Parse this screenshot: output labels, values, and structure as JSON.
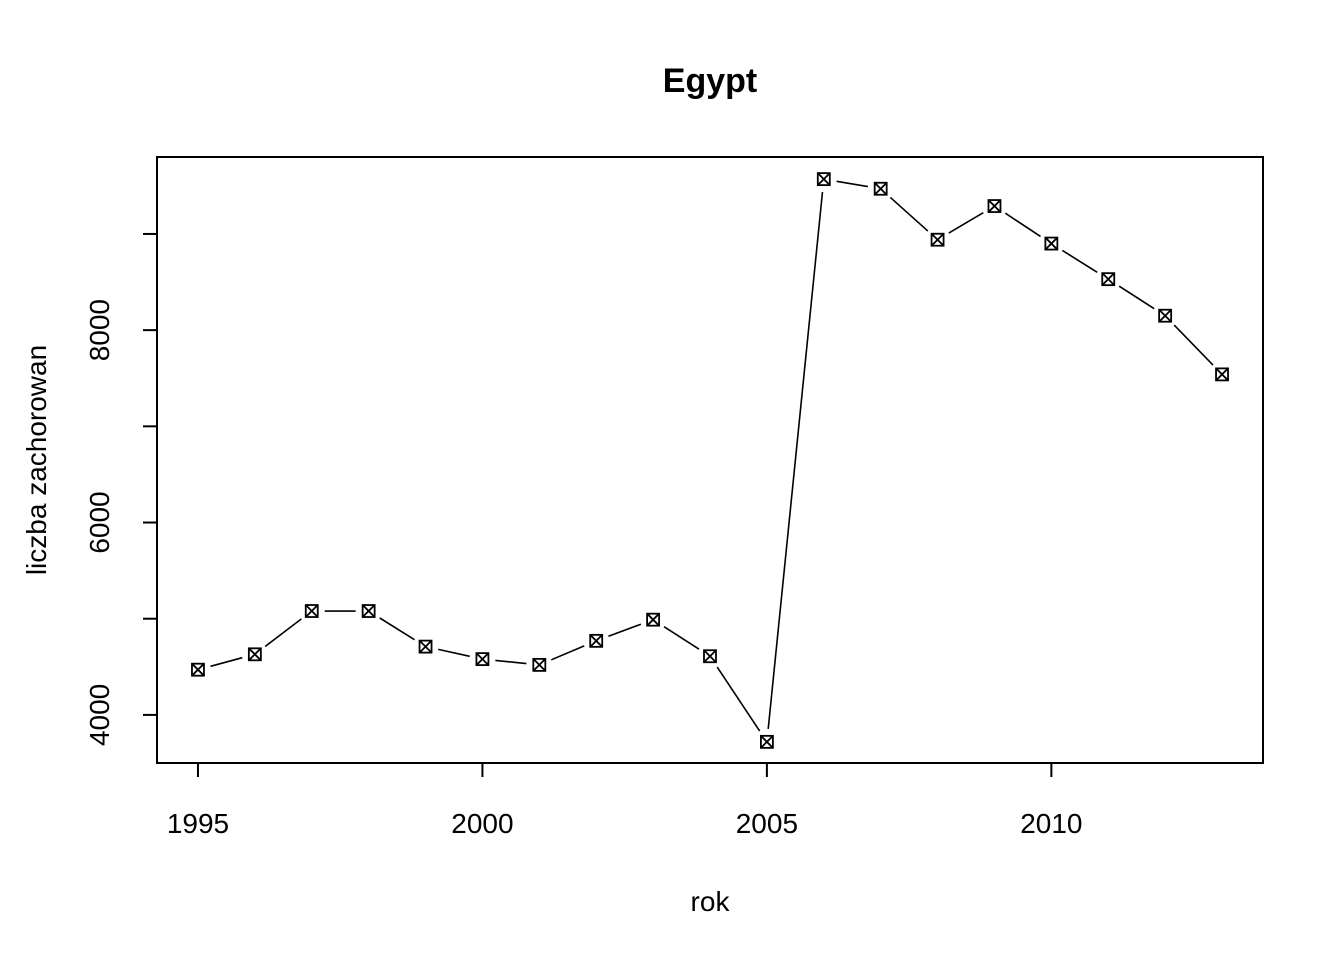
{
  "chart_data": {
    "type": "line",
    "title": "Egypt",
    "xlabel": "rok",
    "ylabel": "liczba zachorowan",
    "x": [
      1995,
      1996,
      1997,
      1998,
      1999,
      2000,
      2001,
      2002,
      2003,
      2004,
      2005,
      2006,
      2007,
      2008,
      2009,
      2010,
      2011,
      2012,
      2013
    ],
    "series": [
      {
        "values": [
          4470,
          4630,
          5080,
          5080,
          4710,
          4580,
          4520,
          4770,
          4990,
          4610,
          3720,
          9570,
          9470,
          8940,
          9290,
          8900,
          8530,
          8150,
          7540
        ]
      }
    ],
    "xlim": [
      1994.28,
      2013.72
    ],
    "ylim": [
      3500,
      9800
    ],
    "xticks": [
      1995,
      2000,
      2005,
      2010
    ],
    "xtick_labels": [
      "1995",
      "2000",
      "2005",
      "2010"
    ],
    "yticks": [
      4000,
      5000,
      6000,
      7000,
      8000,
      9000
    ],
    "ytick_labels": [
      "4000",
      "",
      "6000",
      "",
      "8000",
      ""
    ],
    "marker": "crossed-box",
    "line_style": "gapped-line",
    "grid": false
  }
}
